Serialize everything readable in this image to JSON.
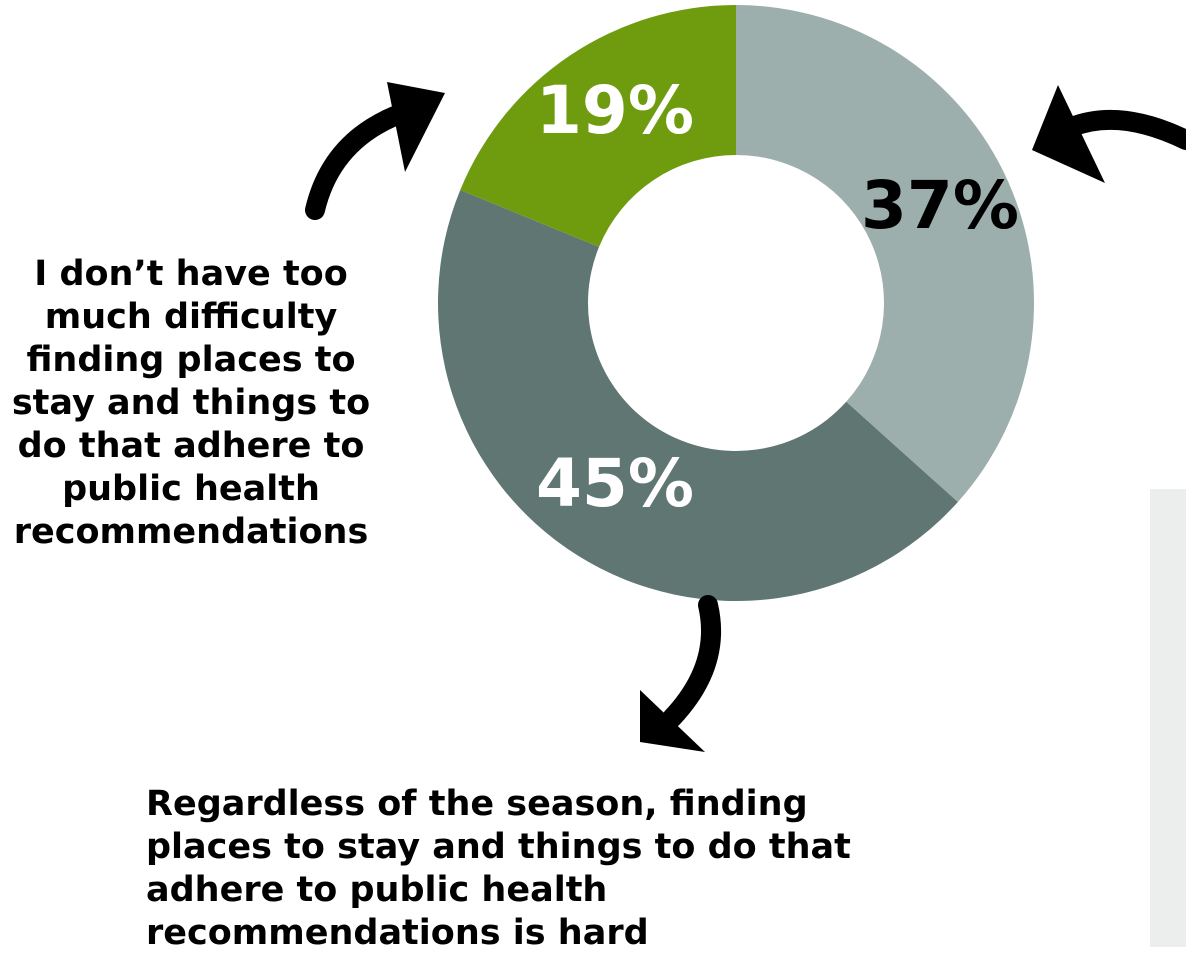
{
  "chart_data": {
    "type": "pie",
    "variant": "donut",
    "slices": [
      {
        "label": "37%",
        "value": 37,
        "color": "#9dafad",
        "label_color": "#000000"
      },
      {
        "label": "45%",
        "value": 45,
        "color": "#5f7673",
        "label_color": "#ffffff"
      },
      {
        "label": "19%",
        "value": 19,
        "color": "#6f9c0f",
        "label_color": "#ffffff"
      }
    ],
    "annotations": [
      "I don’t have too much difficulty finding places to stay and things to do that adhere to public health recommendations",
      "Regardless of the season, finding places to stay and things to do that adhere to public health recommendations is hard"
    ]
  }
}
